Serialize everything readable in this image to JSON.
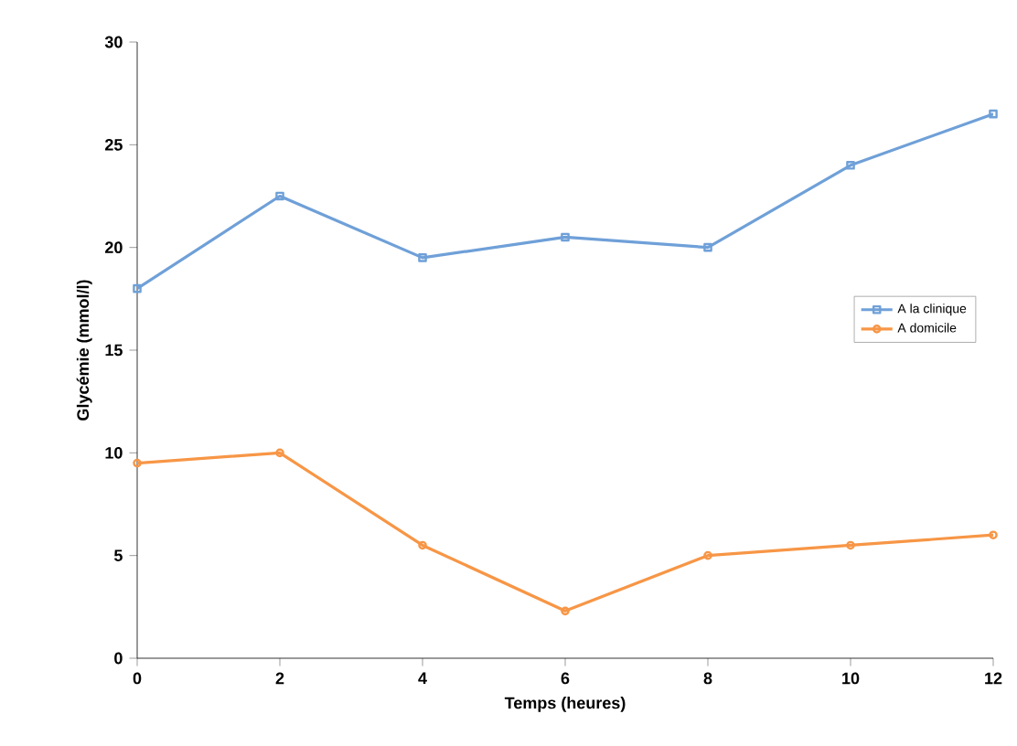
{
  "chart_data": {
    "type": "line",
    "xlabel": "Temps (heures)",
    "ylabel": "Glycémie (mmol/l)",
    "x": [
      0,
      2,
      4,
      6,
      8,
      10,
      12
    ],
    "series": [
      {
        "name": "A la clinique",
        "color": "#6fa0d8",
        "marker": "square",
        "values": [
          18,
          22.5,
          19.5,
          20.5,
          20,
          24,
          26.5
        ]
      },
      {
        "name": "A domicile",
        "color": "#f79646",
        "marker": "circle",
        "values": [
          9.5,
          10,
          5.5,
          2.3,
          5,
          5.5,
          6
        ]
      }
    ],
    "xlim": [
      0,
      12
    ],
    "ylim": [
      0,
      30
    ],
    "xticks": [
      0,
      2,
      4,
      6,
      8,
      10,
      12
    ],
    "yticks": [
      0,
      5,
      10,
      15,
      20,
      25,
      30
    ],
    "grid": false,
    "legend": "right",
    "line_style": "solid"
  }
}
